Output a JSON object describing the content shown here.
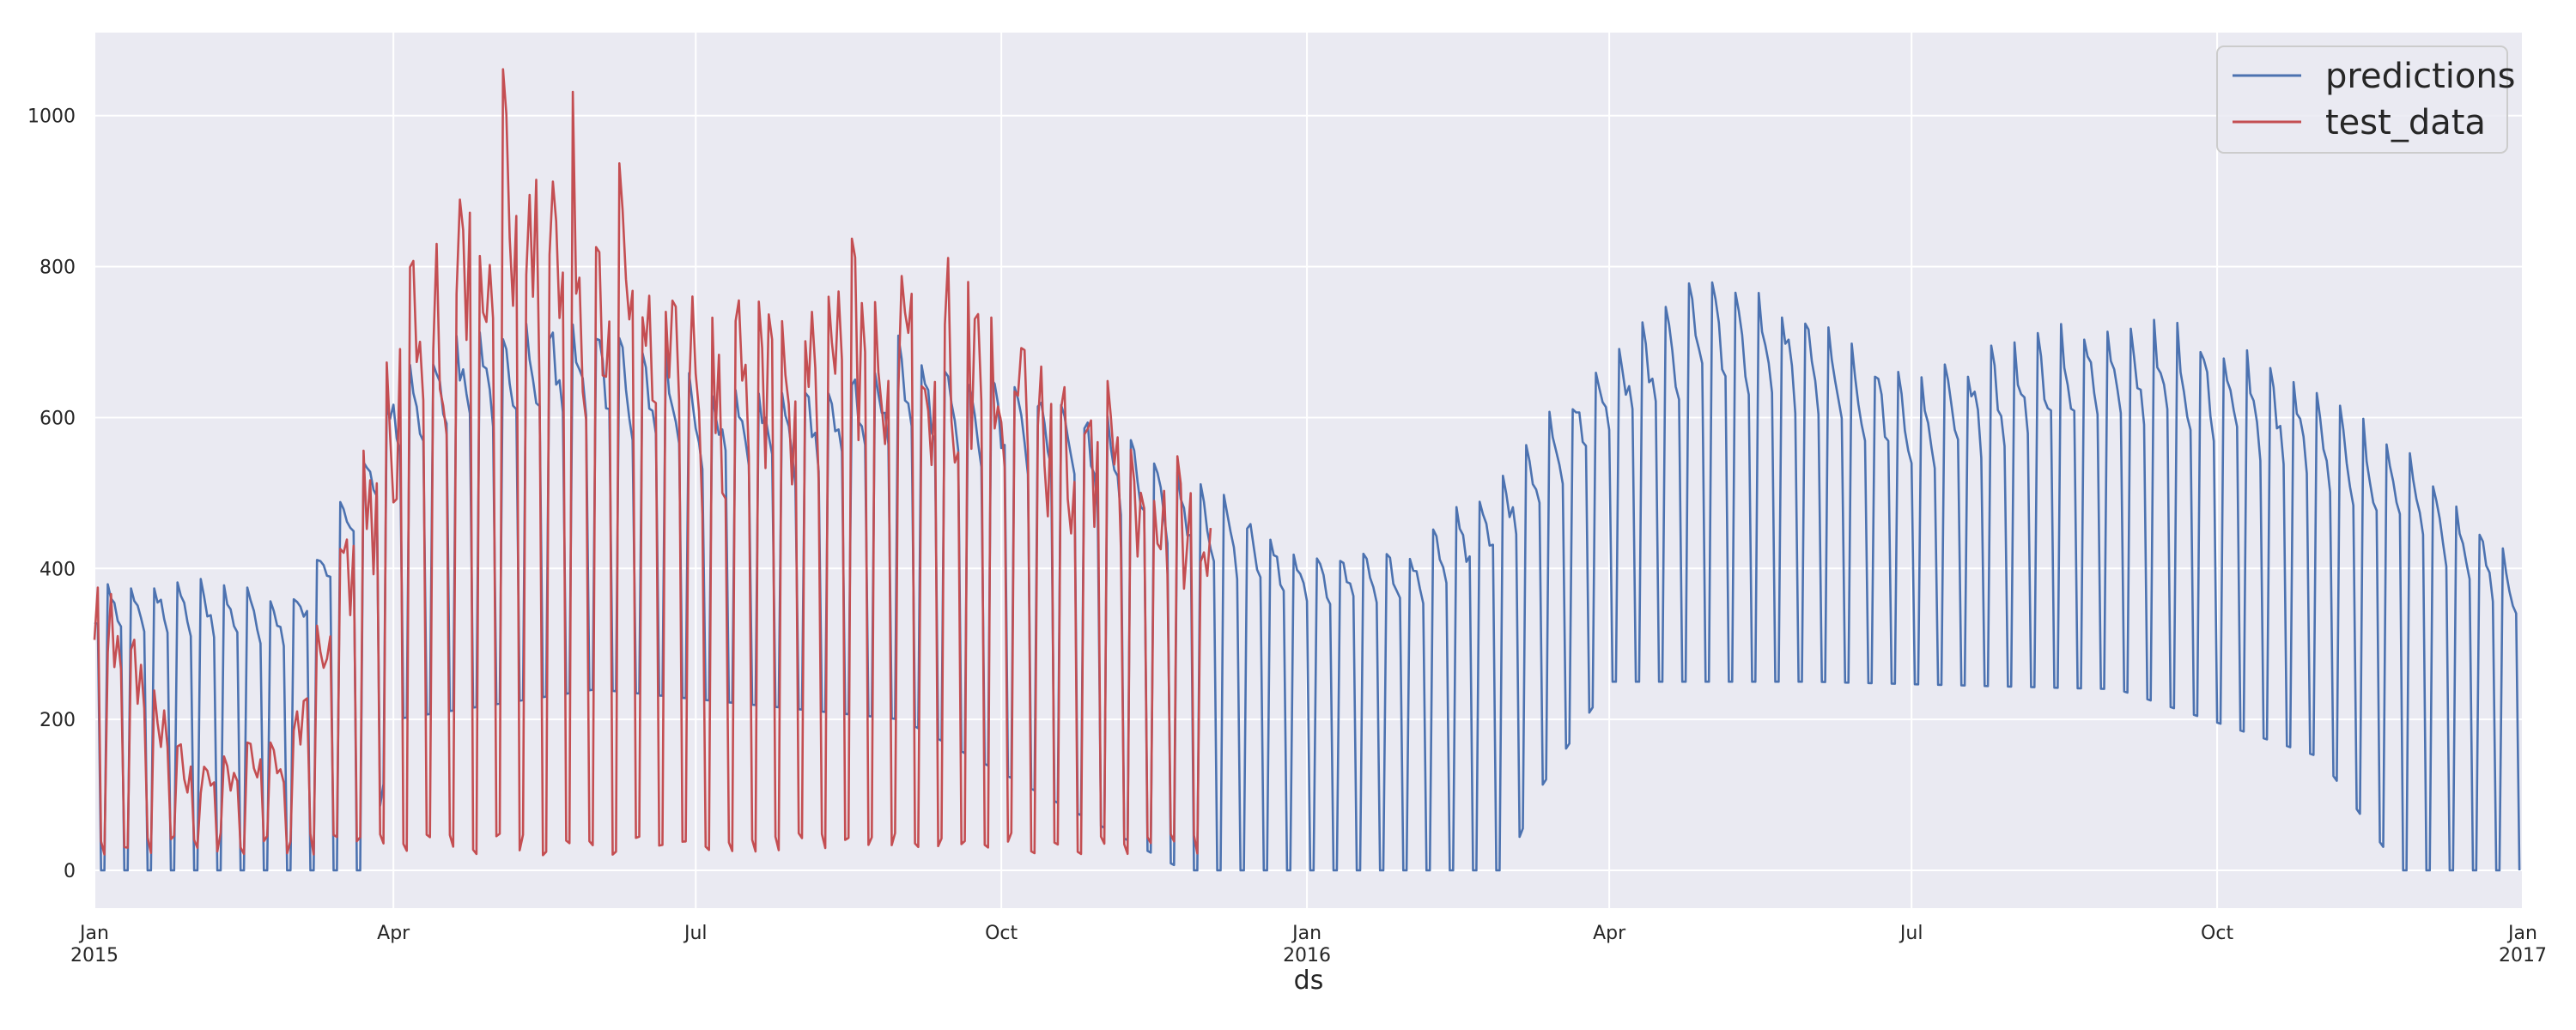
{
  "chart_data": {
    "type": "line",
    "title": "",
    "xlabel": "ds",
    "ylabel": "",
    "x_range": [
      "2015-01-01",
      "2017-01-01"
    ],
    "ylim": [
      -50,
      1110
    ],
    "grid": true,
    "legend_placement": "top-right",
    "y_ticks": [
      0,
      200,
      400,
      600,
      800,
      1000
    ],
    "x_ticks": [
      {
        "date": "2015-01-01",
        "label": "Jan",
        "sublabel": "2015"
      },
      {
        "date": "2015-04-01",
        "label": "Apr",
        "sublabel": ""
      },
      {
        "date": "2015-07-01",
        "label": "Jul",
        "sublabel": ""
      },
      {
        "date": "2015-10-01",
        "label": "Oct",
        "sublabel": ""
      },
      {
        "date": "2016-01-01",
        "label": "Jan",
        "sublabel": "2016"
      },
      {
        "date": "2016-04-01",
        "label": "Apr",
        "sublabel": ""
      },
      {
        "date": "2016-07-01",
        "label": "Jul",
        "sublabel": ""
      },
      {
        "date": "2016-10-01",
        "label": "Oct",
        "sublabel": ""
      },
      {
        "date": "2017-01-01",
        "label": "Jan",
        "sublabel": "2017"
      }
    ],
    "series": [
      {
        "name": "predictions",
        "color": "#4c72b0",
        "start": "2015-01-01",
        "end": "2016-12-31",
        "weekday_anchors": [
          {
            "date": "2015-01-01",
            "value": 380
          },
          {
            "date": "2015-02-01",
            "value": 380
          },
          {
            "date": "2015-03-01",
            "value": 360
          },
          {
            "date": "2015-03-15",
            "value": 470
          },
          {
            "date": "2015-04-01",
            "value": 650
          },
          {
            "date": "2015-05-01",
            "value": 720
          },
          {
            "date": "2015-06-01",
            "value": 720
          },
          {
            "date": "2015-07-01",
            "value": 650
          },
          {
            "date": "2015-08-01",
            "value": 630
          },
          {
            "date": "2015-09-01",
            "value": 690
          },
          {
            "date": "2015-10-01",
            "value": 650
          },
          {
            "date": "2015-11-01",
            "value": 590
          },
          {
            "date": "2015-12-01",
            "value": 500
          },
          {
            "date": "2016-01-01",
            "value": 420
          },
          {
            "date": "2016-02-01",
            "value": 420
          },
          {
            "date": "2016-03-01",
            "value": 520
          },
          {
            "date": "2016-04-01",
            "value": 690
          },
          {
            "date": "2016-05-01",
            "value": 780
          },
          {
            "date": "2016-06-01",
            "value": 730
          },
          {
            "date": "2016-07-01",
            "value": 640
          },
          {
            "date": "2016-08-01",
            "value": 690
          },
          {
            "date": "2016-09-01",
            "value": 720
          },
          {
            "date": "2016-10-01",
            "value": 700
          },
          {
            "date": "2016-11-01",
            "value": 620
          },
          {
            "date": "2016-12-01",
            "value": 530
          },
          {
            "date": "2016-12-31",
            "value": 400
          }
        ],
        "weekend_anchors": [
          {
            "date": "2015-01-01",
            "value": 0
          },
          {
            "date": "2015-03-25",
            "value": 0
          },
          {
            "date": "2015-04-01",
            "value": 200
          },
          {
            "date": "2015-06-01",
            "value": 240
          },
          {
            "date": "2015-09-01",
            "value": 200
          },
          {
            "date": "2015-11-25",
            "value": 0
          },
          {
            "date": "2016-03-01",
            "value": 0
          },
          {
            "date": "2016-03-10",
            "value": 100
          },
          {
            "date": "2016-04-01",
            "value": 250
          },
          {
            "date": "2016-06-01",
            "value": 250
          },
          {
            "date": "2016-09-01",
            "value": 240
          },
          {
            "date": "2016-11-01",
            "value": 150
          },
          {
            "date": "2016-11-25",
            "value": 0
          },
          {
            "date": "2016-12-31",
            "value": 0
          }
        ]
      },
      {
        "name": "test_data",
        "color": "#c44e52",
        "start": "2015-01-01",
        "end": "2015-12-03",
        "weekday_anchors": [
          {
            "date": "2015-01-01",
            "value": 380
          },
          {
            "date": "2015-02-01",
            "value": 120
          },
          {
            "date": "2015-03-01",
            "value": 170
          },
          {
            "date": "2015-03-20",
            "value": 450
          },
          {
            "date": "2015-04-10",
            "value": 800
          },
          {
            "date": "2015-05-01",
            "value": 920
          },
          {
            "date": "2015-06-01",
            "value": 880
          },
          {
            "date": "2015-07-01",
            "value": 700
          },
          {
            "date": "2015-08-01",
            "value": 720
          },
          {
            "date": "2015-09-01",
            "value": 760
          },
          {
            "date": "2015-10-01",
            "value": 690
          },
          {
            "date": "2015-11-01",
            "value": 560
          },
          {
            "date": "2015-12-03",
            "value": 480
          }
        ],
        "weekend_anchors": [
          {
            "date": "2015-01-01",
            "value": 20
          },
          {
            "date": "2015-12-03",
            "value": 20
          }
        ]
      }
    ]
  }
}
